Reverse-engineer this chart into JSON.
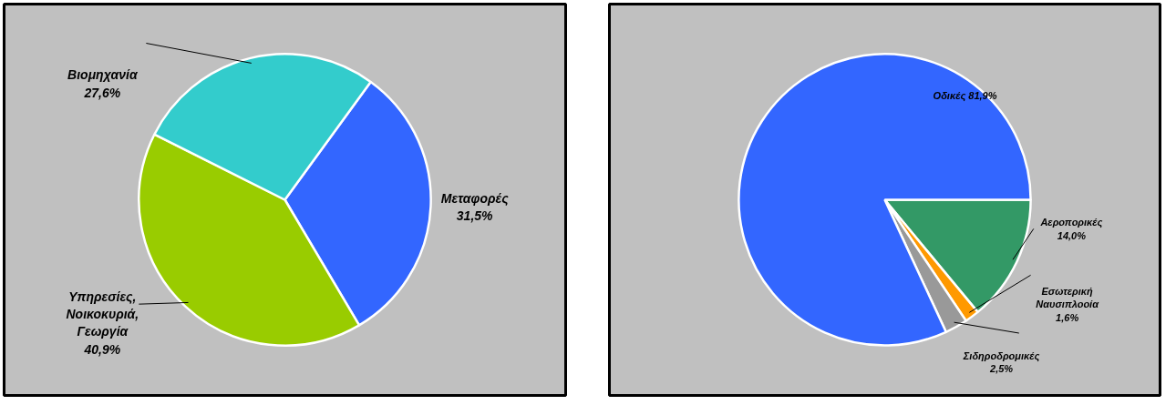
{
  "chart_data": [
    {
      "type": "pie",
      "categories": [
        "Μεταφορές",
        "Υπηρεσίες, Νοικοκυριά, Γεωργία",
        "Βιομηχανία"
      ],
      "values": [
        31.5,
        40.9,
        27.6
      ],
      "colors": [
        "#3366ff",
        "#99cc00",
        "#33cccc"
      ],
      "value_labels": [
        "31,5%",
        "40,9%",
        "27,6%"
      ]
    },
    {
      "type": "pie",
      "categories": [
        "Αεροπορικές",
        "Εσωτερική Ναυσιπλοοία",
        "Σιδηροδρομικές",
        "Οδικές"
      ],
      "values": [
        14.0,
        1.6,
        2.5,
        81.9
      ],
      "colors": [
        "#339966",
        "#ff9900",
        "#999999",
        "#3366ff"
      ],
      "value_labels": [
        "14,0%",
        "1,6%",
        "2,5%",
        "81,9%"
      ]
    }
  ]
}
